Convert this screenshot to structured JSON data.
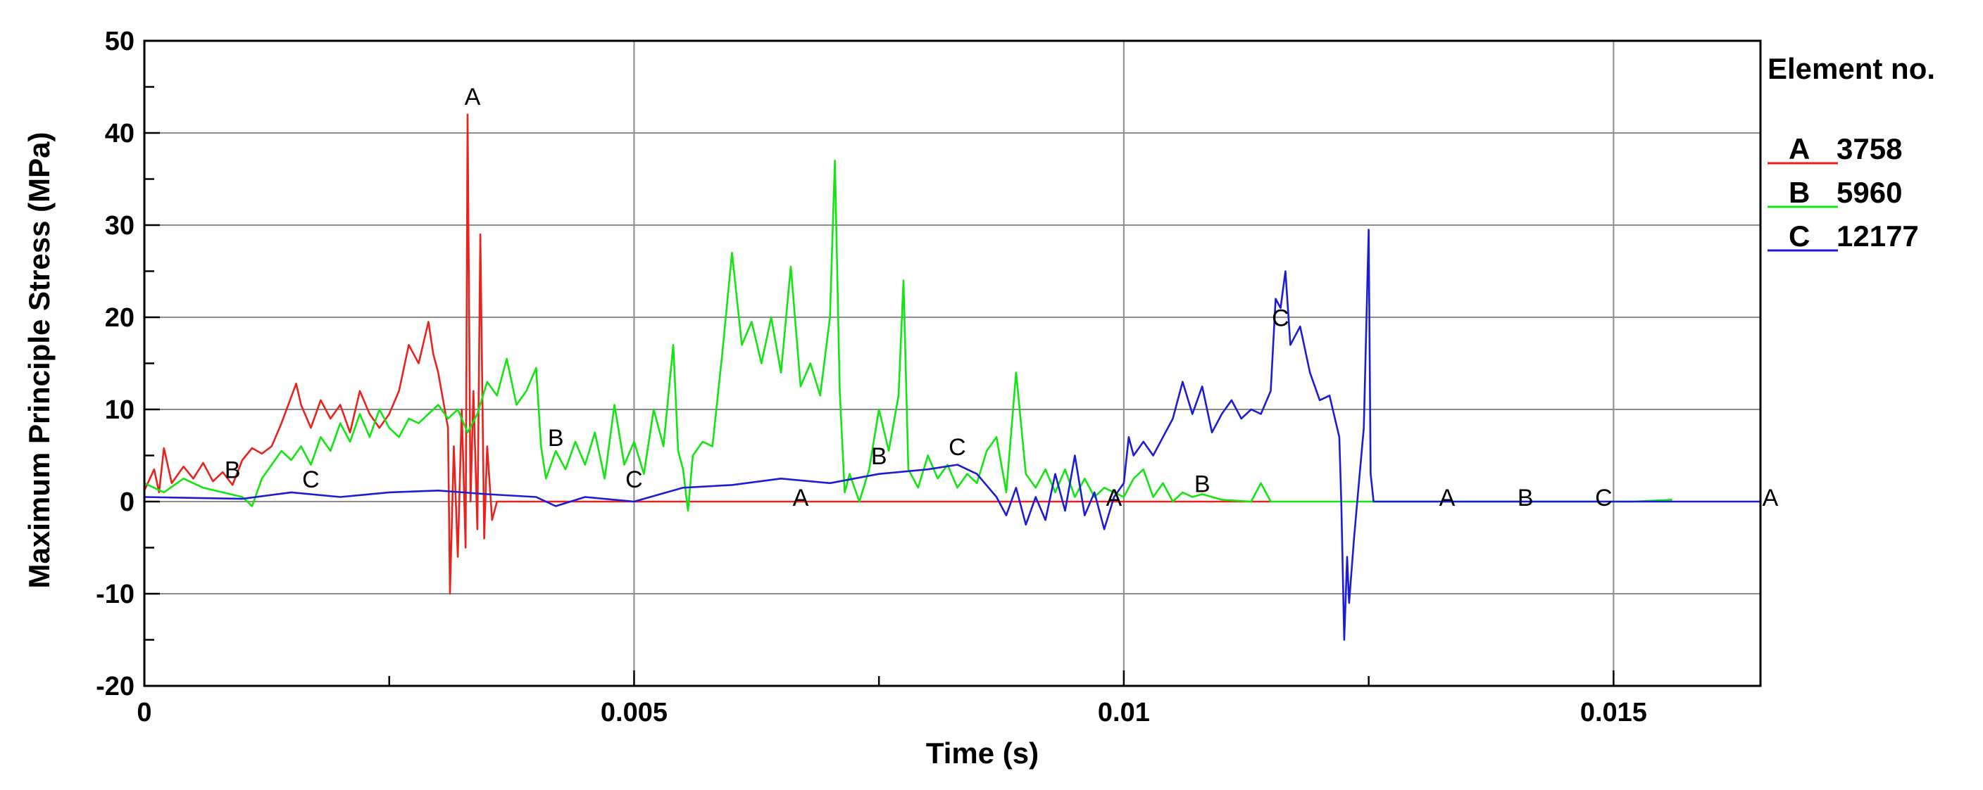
{
  "chart_data": {
    "type": "line",
    "xlabel": "Time (s)",
    "ylabel": "Maximum Principle Stress (MPa)",
    "xlim": [
      0,
      0.0165
    ],
    "ylim": [
      -20,
      50
    ],
    "x_ticks": [
      0,
      0.005,
      0.01,
      0.015
    ],
    "x_tick_labels": [
      "0",
      "0.005",
      "0.01",
      "0.015"
    ],
    "y_ticks": [
      -20,
      -10,
      0,
      10,
      20,
      30,
      40,
      50
    ],
    "y_tick_labels": [
      "-20",
      "-10",
      "0",
      "10",
      "20",
      "30",
      "40",
      "50"
    ],
    "grid": true,
    "legend": {
      "title": "Element no.",
      "placement": "right"
    },
    "series": [
      {
        "marker": "A",
        "name": "3758",
        "color": "#e8221c",
        "points": [
          [
            0,
            1.2
          ],
          [
            0.0001,
            3.5
          ],
          [
            0.00015,
            1.0
          ],
          [
            0.0002,
            5.8
          ],
          [
            0.00028,
            2.0
          ],
          [
            0.0004,
            3.8
          ],
          [
            0.0005,
            2.5
          ],
          [
            0.0006,
            4.2
          ],
          [
            0.0007,
            2.2
          ],
          [
            0.0008,
            3.2
          ],
          [
            0.0009,
            1.8
          ],
          [
            0.001,
            4.5
          ],
          [
            0.0011,
            5.8
          ],
          [
            0.0012,
            5.2
          ],
          [
            0.0013,
            6.0
          ],
          [
            0.0014,
            8.5
          ],
          [
            0.00155,
            12.8
          ],
          [
            0.0016,
            10.5
          ],
          [
            0.0017,
            8.0
          ],
          [
            0.0018,
            11.0
          ],
          [
            0.0019,
            9.0
          ],
          [
            0.002,
            10.5
          ],
          [
            0.0021,
            7.5
          ],
          [
            0.0022,
            12.0
          ],
          [
            0.0023,
            9.5
          ],
          [
            0.0024,
            8.0
          ],
          [
            0.0025,
            9.5
          ],
          [
            0.0026,
            12.0
          ],
          [
            0.0027,
            17.0
          ],
          [
            0.0028,
            15.0
          ],
          [
            0.0029,
            19.5
          ],
          [
            0.00295,
            16.0
          ],
          [
            0.003,
            14.0
          ],
          [
            0.0031,
            8.0
          ],
          [
            0.00312,
            -10.0
          ],
          [
            0.00316,
            6.0
          ],
          [
            0.0032,
            -6.0
          ],
          [
            0.00324,
            10.0
          ],
          [
            0.00328,
            -5.0
          ],
          [
            0.0033,
            42.0
          ],
          [
            0.00333,
            0.0
          ],
          [
            0.00336,
            12.0
          ],
          [
            0.0034,
            -3.0
          ],
          [
            0.00343,
            29.0
          ],
          [
            0.00347,
            -4.0
          ],
          [
            0.0035,
            6.0
          ],
          [
            0.00355,
            -2.0
          ],
          [
            0.0036,
            0.0
          ],
          [
            0.0065,
            0.0
          ],
          [
            0.0085,
            0.0
          ],
          [
            0.01,
            0.0
          ],
          [
            0.0115,
            0.0
          ]
        ],
        "label_points": [
          [
            0.00335,
            43.5
          ],
          [
            0.0067,
            0
          ],
          [
            0.0099,
            0
          ],
          [
            0.0133,
            0
          ],
          [
            0.0166,
            0
          ]
        ]
      },
      {
        "marker": "B",
        "name": "5960",
        "color": "#12e512",
        "points": [
          [
            0,
            2.0
          ],
          [
            0.0002,
            1.0
          ],
          [
            0.0004,
            2.5
          ],
          [
            0.0006,
            1.5
          ],
          [
            0.0008,
            1.0
          ],
          [
            0.001,
            0.5
          ],
          [
            0.0011,
            -0.5
          ],
          [
            0.0012,
            2.5
          ],
          [
            0.0013,
            4.0
          ],
          [
            0.0014,
            5.5
          ],
          [
            0.0015,
            4.5
          ],
          [
            0.0016,
            6.0
          ],
          [
            0.0017,
            4.0
          ],
          [
            0.0018,
            7.0
          ],
          [
            0.0019,
            5.5
          ],
          [
            0.002,
            8.5
          ],
          [
            0.0021,
            6.5
          ],
          [
            0.0022,
            9.5
          ],
          [
            0.0023,
            7.0
          ],
          [
            0.0024,
            10.0
          ],
          [
            0.0025,
            8.0
          ],
          [
            0.0026,
            7.0
          ],
          [
            0.0027,
            9.0
          ],
          [
            0.0028,
            8.5
          ],
          [
            0.0029,
            9.5
          ],
          [
            0.003,
            10.5
          ],
          [
            0.0031,
            9.0
          ],
          [
            0.0032,
            10.0
          ],
          [
            0.0033,
            7.5
          ],
          [
            0.0034,
            9.5
          ],
          [
            0.0035,
            13.0
          ],
          [
            0.0036,
            11.5
          ],
          [
            0.0037,
            15.5
          ],
          [
            0.0038,
            10.5
          ],
          [
            0.0039,
            12.0
          ],
          [
            0.004,
            14.5
          ],
          [
            0.00405,
            6.0
          ],
          [
            0.0041,
            2.5
          ],
          [
            0.0042,
            5.5
          ],
          [
            0.0043,
            3.5
          ],
          [
            0.0044,
            6.5
          ],
          [
            0.0045,
            4.0
          ],
          [
            0.0046,
            7.5
          ],
          [
            0.0047,
            2.5
          ],
          [
            0.0048,
            10.5
          ],
          [
            0.0049,
            4.0
          ],
          [
            0.005,
            6.5
          ],
          [
            0.0051,
            3.0
          ],
          [
            0.0052,
            10.0
          ],
          [
            0.0053,
            6.0
          ],
          [
            0.0054,
            17.0
          ],
          [
            0.00545,
            5.5
          ],
          [
            0.0055,
            3.5
          ],
          [
            0.00555,
            -1.0
          ],
          [
            0.0056,
            5.0
          ],
          [
            0.0057,
            6.5
          ],
          [
            0.0058,
            6.0
          ],
          [
            0.0059,
            16.0
          ],
          [
            0.006,
            27.0
          ],
          [
            0.0061,
            17.0
          ],
          [
            0.0062,
            19.5
          ],
          [
            0.0063,
            15.0
          ],
          [
            0.0064,
            20.0
          ],
          [
            0.0065,
            14.0
          ],
          [
            0.0066,
            25.5
          ],
          [
            0.0067,
            12.5
          ],
          [
            0.0068,
            15.0
          ],
          [
            0.0069,
            11.5
          ],
          [
            0.007,
            20.0
          ],
          [
            0.00705,
            37.0
          ],
          [
            0.0071,
            12.0
          ],
          [
            0.00715,
            1.0
          ],
          [
            0.0072,
            3.0
          ],
          [
            0.0073,
            0.0
          ],
          [
            0.0074,
            3.5
          ],
          [
            0.0075,
            10.0
          ],
          [
            0.0076,
            5.5
          ],
          [
            0.0077,
            11.5
          ],
          [
            0.00775,
            24.0
          ],
          [
            0.0078,
            3.5
          ],
          [
            0.0079,
            1.5
          ],
          [
            0.008,
            5.0
          ],
          [
            0.0081,
            2.5
          ],
          [
            0.0082,
            4.0
          ],
          [
            0.0083,
            1.5
          ],
          [
            0.0084,
            3.0
          ],
          [
            0.0085,
            2.0
          ],
          [
            0.0086,
            5.5
          ],
          [
            0.0087,
            7.0
          ],
          [
            0.0088,
            1.0
          ],
          [
            0.0089,
            14.0
          ],
          [
            0.009,
            3.0
          ],
          [
            0.0091,
            1.5
          ],
          [
            0.0092,
            3.5
          ],
          [
            0.0093,
            1.0
          ],
          [
            0.0094,
            3.5
          ],
          [
            0.0095,
            0.5
          ],
          [
            0.0096,
            2.5
          ],
          [
            0.0097,
            0.5
          ],
          [
            0.0098,
            1.5
          ],
          [
            0.0099,
            1.0
          ],
          [
            0.01,
            0.5
          ],
          [
            0.0101,
            2.5
          ],
          [
            0.0102,
            3.5
          ],
          [
            0.0103,
            0.5
          ],
          [
            0.0104,
            2.0
          ],
          [
            0.0105,
            0.0
          ],
          [
            0.0106,
            1.0
          ],
          [
            0.0107,
            0.5
          ],
          [
            0.0108,
            0.8
          ],
          [
            0.011,
            0.2
          ],
          [
            0.0113,
            0.0
          ],
          [
            0.0114,
            2.0
          ],
          [
            0.0115,
            0.0
          ],
          [
            0.0125,
            0.0
          ],
          [
            0.0152,
            0.0
          ],
          [
            0.0156,
            0.2
          ]
        ],
        "label_points": [
          [
            0.0009,
            3.0
          ],
          [
            0.0042,
            6.5
          ],
          [
            0.0075,
            4.5
          ],
          [
            0.0108,
            1.5
          ],
          [
            0.0141,
            0
          ]
        ]
      },
      {
        "marker": "C",
        "name": "12177",
        "color": "#1c1cd6",
        "points": [
          [
            0,
            0.5
          ],
          [
            0.0005,
            0.4
          ],
          [
            0.001,
            0.3
          ],
          [
            0.0015,
            1.0
          ],
          [
            0.002,
            0.5
          ],
          [
            0.0025,
            1.0
          ],
          [
            0.003,
            1.2
          ],
          [
            0.0035,
            0.8
          ],
          [
            0.004,
            0.5
          ],
          [
            0.0042,
            -0.5
          ],
          [
            0.0045,
            0.5
          ],
          [
            0.005,
            0.0
          ],
          [
            0.0055,
            1.5
          ],
          [
            0.006,
            1.8
          ],
          [
            0.0065,
            2.5
          ],
          [
            0.007,
            2.0
          ],
          [
            0.0075,
            3.0
          ],
          [
            0.008,
            3.5
          ],
          [
            0.0083,
            4.0
          ],
          [
            0.0085,
            3.0
          ],
          [
            0.0087,
            0.5
          ],
          [
            0.0088,
            -1.5
          ],
          [
            0.0089,
            1.5
          ],
          [
            0.009,
            -2.5
          ],
          [
            0.0091,
            0.5
          ],
          [
            0.0092,
            -2.0
          ],
          [
            0.0093,
            3.0
          ],
          [
            0.0094,
            -1.0
          ],
          [
            0.0095,
            5.0
          ],
          [
            0.0096,
            -1.5
          ],
          [
            0.0097,
            1.0
          ],
          [
            0.0098,
            -3.0
          ],
          [
            0.0099,
            0.5
          ],
          [
            0.01,
            2.0
          ],
          [
            0.01005,
            7.0
          ],
          [
            0.0101,
            5.0
          ],
          [
            0.0102,
            6.5
          ],
          [
            0.0103,
            5.0
          ],
          [
            0.0104,
            7.0
          ],
          [
            0.0105,
            9.0
          ],
          [
            0.0106,
            13.0
          ],
          [
            0.0107,
            9.5
          ],
          [
            0.0108,
            12.5
          ],
          [
            0.0109,
            7.5
          ],
          [
            0.011,
            9.5
          ],
          [
            0.0111,
            11.0
          ],
          [
            0.0112,
            9.0
          ],
          [
            0.0113,
            10.0
          ],
          [
            0.0114,
            9.5
          ],
          [
            0.0115,
            12.0
          ],
          [
            0.01155,
            22.0
          ],
          [
            0.0116,
            21.0
          ],
          [
            0.01165,
            25.0
          ],
          [
            0.0117,
            17.0
          ],
          [
            0.0118,
            19.0
          ],
          [
            0.0119,
            14.0
          ],
          [
            0.012,
            11.0
          ],
          [
            0.0121,
            11.5
          ],
          [
            0.0122,
            7.0
          ],
          [
            0.01222,
            0.0
          ],
          [
            0.01225,
            -15.0
          ],
          [
            0.01228,
            -6.0
          ],
          [
            0.0123,
            -11.0
          ],
          [
            0.01235,
            -4.0
          ],
          [
            0.0124,
            2.0
          ],
          [
            0.01245,
            8.0
          ],
          [
            0.0125,
            29.5
          ],
          [
            0.01252,
            3.0
          ],
          [
            0.01255,
            0.0
          ],
          [
            0.0165,
            0.0
          ]
        ],
        "label_points": [
          [
            0.0017,
            2.0
          ],
          [
            0.005,
            2.0
          ],
          [
            0.0083,
            5.5
          ],
          [
            0.0116,
            19.5
          ],
          [
            0.0149,
            0
          ]
        ]
      }
    ]
  }
}
